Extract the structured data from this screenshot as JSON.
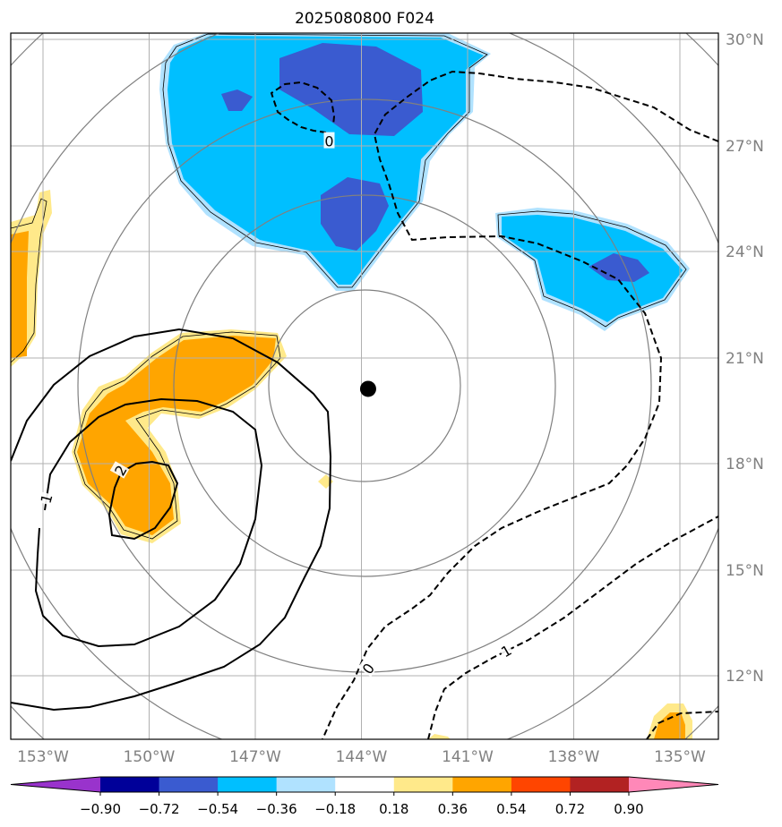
{
  "title": "2025080800 F024",
  "map": {
    "lon_min": -154,
    "lon_max": -134,
    "lat_min": 10.3,
    "lat_max": 30.25,
    "lon_ticks": [
      -153,
      -150,
      -147,
      -144,
      -141,
      -138,
      -135
    ],
    "lon_tick_labels": [
      "153°W",
      "150°W",
      "147°W",
      "144°W",
      "141°W",
      "138°W",
      "135°W"
    ],
    "lat_ticks": [
      12,
      15,
      18,
      21,
      24,
      27,
      30
    ],
    "lat_tick_labels": [
      "12°N",
      "15°N",
      "18°N",
      "21°N",
      "24°N",
      "27°N",
      "30°N"
    ],
    "grid": true,
    "center_marker": {
      "lon": -143.9,
      "lat": 20.2
    },
    "range_rings_deg": [
      2.7,
      5.4,
      8.1,
      10.8,
      13.5
    ]
  },
  "contour_labels": [
    {
      "text": "0",
      "lon": -145.0,
      "lat": 27.2,
      "angle": 0
    },
    {
      "text": "2",
      "lon": -150.9,
      "lat": 17.9,
      "angle": -60
    },
    {
      "text": "1",
      "lon": -153.0,
      "lat": 17.1,
      "angle": -75
    },
    {
      "text": "0",
      "lon": -143.9,
      "lat": 12.3,
      "angle": -55
    },
    {
      "text": "1",
      "lon": -140.0,
      "lat": 12.8,
      "angle": -30
    }
  ],
  "colorbar": {
    "levels": [
      -0.9,
      -0.72,
      -0.54,
      -0.36,
      -0.18,
      0.18,
      0.36,
      0.54,
      0.72,
      0.9
    ],
    "tick_labels": [
      "−0.90",
      "−0.72",
      "−0.54",
      "−0.36",
      "−0.18",
      "0.18",
      "0.36",
      "0.54",
      "0.72",
      "0.90"
    ],
    "colors": [
      "#9933cc",
      "#000099",
      "#3a5bd0",
      "#00bfff",
      "#b0e2ff",
      "#ffffff",
      "#ffe98a",
      "#ffa500",
      "#ff4500",
      "#b22222",
      "#ff88b8"
    ],
    "extend": "both"
  }
}
